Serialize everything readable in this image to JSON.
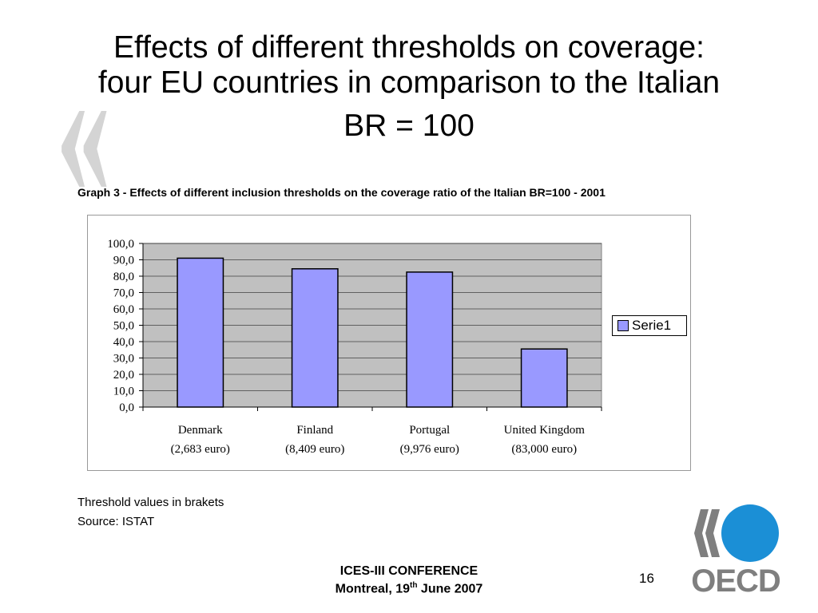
{
  "slide": {
    "title_line1": "Effects of different thresholds on coverage:",
    "title_line2": "four EU countries in comparison to the Italian",
    "title_line3": "BR = 100",
    "graph_caption": "Graph  3 - Effects of different inclusion thresholds on the coverage ratio of the Italian BR=100 - 2001",
    "note1": "Threshold values in brakets",
    "note2": "Source: ISTAT",
    "footer_line1": "ICES-III CONFERENCE",
    "footer_line2_pre": "Montreal, 19",
    "footer_line2_sup": "th",
    "footer_line2_post": " June 2007",
    "page_number": "16",
    "logo_text": "OECD"
  },
  "colors": {
    "plot_background": "#c0c0c0",
    "bar_fill": "#9999ff",
    "logo_blue": "#1b8fd6",
    "logo_grey": "#7f7f7f"
  },
  "chart_data": {
    "type": "bar",
    "categories": [
      "Denmark",
      "Finland",
      "Portugal",
      "United Kingdom"
    ],
    "category_sublabels": [
      "(2,683 euro)",
      "(8,409 euro)",
      "(9,976 euro)",
      "(83,000 euro)"
    ],
    "series": [
      {
        "name": "Serie1",
        "values": [
          91,
          84.5,
          82.5,
          35.5
        ]
      }
    ],
    "ylim": [
      0,
      100
    ],
    "yticks": [
      "0,0",
      "10,0",
      "20,0",
      "30,0",
      "40,0",
      "50,0",
      "60,0",
      "70,0",
      "80,0",
      "90,0",
      "100,0"
    ],
    "grid": true,
    "legend": "right"
  }
}
